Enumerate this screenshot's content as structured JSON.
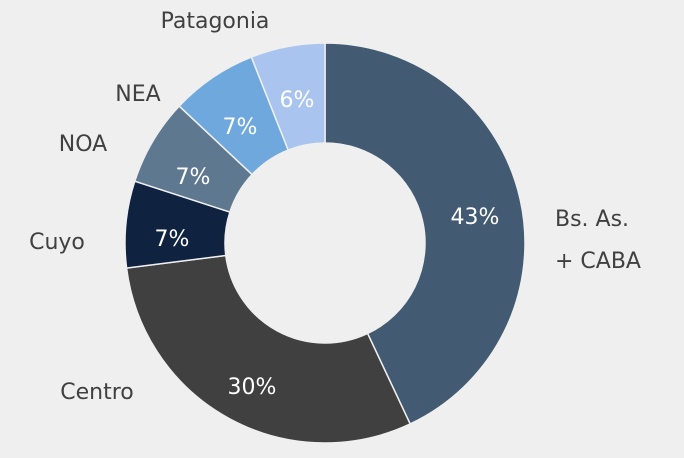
{
  "chart_data": {
    "type": "donut",
    "categories": [
      "Bs. As. + CABA",
      "Centro",
      "Cuyo",
      "NOA",
      "NEA",
      "Patagonia"
    ],
    "values": [
      43,
      30,
      7,
      7,
      7,
      6
    ],
    "value_labels": [
      "43%",
      "30%",
      "7%",
      "7%",
      "7%",
      "6%"
    ],
    "colors": [
      "#435a73",
      "#404040",
      "#0f2340",
      "#5e7890",
      "#6fa8dc",
      "#a9c4ef"
    ]
  }
}
